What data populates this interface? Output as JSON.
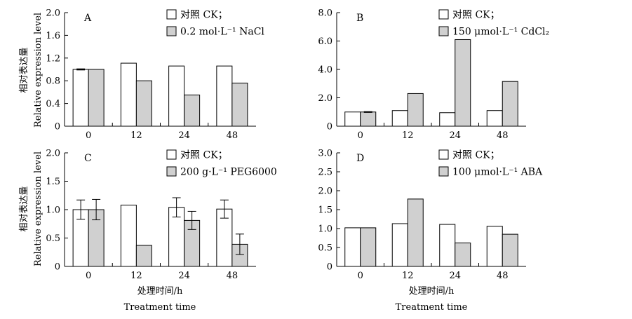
{
  "y_axis_label_cn": "相对表达量",
  "y_axis_label_en": "Relative expression level",
  "x_axis_label_cn": "处理时间/h",
  "x_axis_label_en": "Treatment time",
  "colors": {
    "ck": "#ffffff",
    "treatment": "#d0d0d0",
    "axis": "#000000"
  },
  "chart_data": [
    {
      "type": "bar",
      "panel": "A",
      "categories": [
        "0",
        "12",
        "24",
        "48"
      ],
      "ylim": [
        0,
        2.0
      ],
      "yticks": [
        "0",
        "0.4",
        "0.8",
        "1.2",
        "1.6",
        "2.0"
      ],
      "series": [
        {
          "name": "对照 CK；",
          "values": [
            1.0,
            1.11,
            1.06,
            1.06
          ],
          "errors": [
            0.01,
            null,
            null,
            null
          ]
        },
        {
          "name": "0.2 mol·L⁻¹ NaCl",
          "values": [
            1.0,
            0.8,
            0.55,
            0.76
          ],
          "errors": [
            null,
            null,
            null,
            null
          ]
        }
      ]
    },
    {
      "type": "bar",
      "panel": "B",
      "categories": [
        "0",
        "12",
        "24",
        "48"
      ],
      "ylim": [
        0,
        8.0
      ],
      "yticks": [
        "0",
        "2.0",
        "4.0",
        "6.0",
        "8.0"
      ],
      "series": [
        {
          "name": "对照 CK；",
          "values": [
            1.0,
            1.1,
            0.95,
            1.1
          ],
          "errors": [
            null,
            null,
            null,
            null
          ]
        },
        {
          "name": "150 μmol·L⁻¹ CdCl₂",
          "values": [
            1.0,
            2.3,
            6.1,
            3.15
          ],
          "errors": [
            0.03,
            null,
            null,
            null
          ]
        }
      ]
    },
    {
      "type": "bar",
      "panel": "C",
      "categories": [
        "0",
        "12",
        "24",
        "48"
      ],
      "ylim": [
        0,
        2.0
      ],
      "yticks": [
        "0",
        "0.5",
        "1.0",
        "1.5",
        "2.0"
      ],
      "series": [
        {
          "name": "对照 CK；",
          "values": [
            1.0,
            1.08,
            1.04,
            1.01
          ],
          "errors": [
            0.17,
            null,
            0.17,
            0.16
          ]
        },
        {
          "name": "200 g·L⁻¹ PEG6000",
          "values": [
            1.0,
            0.37,
            0.81,
            0.39
          ],
          "errors": [
            0.18,
            null,
            0.16,
            0.18
          ]
        }
      ]
    },
    {
      "type": "bar",
      "panel": "D",
      "categories": [
        "0",
        "12",
        "24",
        "48"
      ],
      "ylim": [
        0,
        3.0
      ],
      "yticks": [
        "0",
        "0.5",
        "1.0",
        "1.5",
        "2.0",
        "2.5",
        "3.0"
      ],
      "series": [
        {
          "name": "对照 CK；",
          "values": [
            1.02,
            1.13,
            1.11,
            1.06
          ],
          "errors": [
            null,
            null,
            null,
            null
          ]
        },
        {
          "name": "100 μmol·L⁻¹ ABA",
          "values": [
            1.02,
            1.78,
            0.62,
            0.85
          ],
          "errors": [
            null,
            null,
            null,
            null
          ]
        }
      ]
    }
  ]
}
